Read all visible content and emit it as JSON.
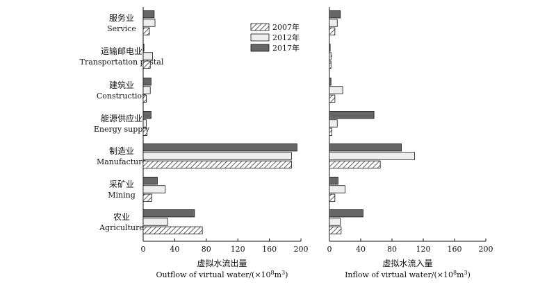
{
  "chart_data": {
    "type": "bar",
    "orientation": "horizontal",
    "categories": [
      {
        "cn": "服务业",
        "en": "Service"
      },
      {
        "cn": "运输邮电业",
        "en": "Transportation postal"
      },
      {
        "cn": "建筑业",
        "en": "Construction"
      },
      {
        "cn": "能源供应业",
        "en": "Energy supply"
      },
      {
        "cn": "制造业",
        "en": "Manufacture"
      },
      {
        "cn": "采矿业",
        "en": "Mining"
      },
      {
        "cn": "农业",
        "en": "Agriculture"
      }
    ],
    "legend": {
      "placement": "top-right of left panel",
      "entries": [
        {
          "name": "2007年",
          "fill": "hatch"
        },
        {
          "name": "2012年",
          "fill": "#eeeeee"
        },
        {
          "name": "2017年",
          "fill": "#666666"
        }
      ]
    },
    "panels": [
      {
        "id": "outflow",
        "xlabel_cn": "虚拟水流出量",
        "xlabel_en": "Outflow of virtual water/(×10",
        "xlim": [
          0,
          200
        ],
        "ticks": [
          0,
          40,
          80,
          120,
          160,
          200
        ],
        "series": [
          {
            "name": "2007年",
            "values": [
              8,
              9,
              4,
              5,
              188,
              11,
              75
            ]
          },
          {
            "name": "2012年",
            "values": [
              15,
              12,
              9,
              4,
              188,
              28,
              31
            ]
          },
          {
            "name": "2017年",
            "values": [
              14,
              1,
              10,
              10,
              195,
              18,
              65
            ]
          }
        ]
      },
      {
        "id": "inflow",
        "xlabel_cn": "虚拟水流入量",
        "xlabel_en": "Inflow of virtual water/(×10",
        "xlim": [
          0,
          200
        ],
        "ticks": [
          0,
          40,
          80,
          120,
          160,
          200
        ],
        "series": [
          {
            "name": "2007年",
            "values": [
              7,
              2,
              7,
              3,
              65,
              7,
              15
            ]
          },
          {
            "name": "2012年",
            "values": [
              10,
              2,
              17,
              10,
              109,
              20,
              14
            ]
          },
          {
            "name": "2017年",
            "values": [
              14,
              1,
              2,
              57,
              92,
              11,
              43
            ]
          }
        ]
      }
    ],
    "unit_exponent": "8",
    "unit_base": "m",
    "unit_power": "3",
    "unit_close": ")"
  },
  "colors": {
    "axis": "#111111",
    "s2012": "#eeeeee",
    "s2017": "#666666",
    "hatch": "#333333"
  }
}
